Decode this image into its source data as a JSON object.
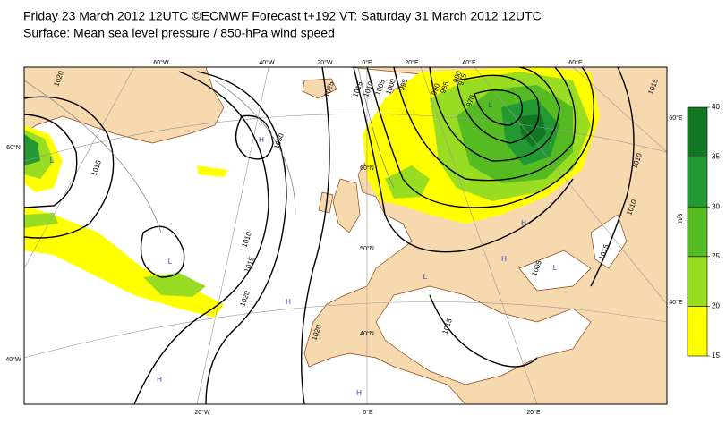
{
  "header": {
    "line1": "Friday 23 March 2012 12UTC ©ECMWF Forecast t+192 VT: Saturday 31 March 2012 12UTC",
    "line2": "Surface: Mean sea level pressure / 850-hPa wind speed"
  },
  "graticule_labels": [
    "60°W",
    "40°W",
    "20°W",
    "0°E",
    "20°E",
    "40°E",
    "60°E",
    "20°W",
    "0°E",
    "20°E",
    "60°N",
    "40°W",
    "60°E",
    "40°E",
    "60°N",
    "50°N",
    "40°N"
  ],
  "isobar_labels": [
    "1020",
    "1015",
    "1010",
    "1015",
    "1020",
    "1020",
    "1030",
    "1025",
    "1015",
    "1010",
    "1005",
    "1000",
    "995",
    "990",
    "985",
    "980",
    "975",
    "970",
    "1015",
    "1010",
    "1010",
    "1015",
    "1015",
    "1005"
  ],
  "pressure_centres": [
    "H",
    "L",
    "H",
    "H",
    "H",
    "L",
    "H",
    "L",
    "L",
    "H",
    "L"
  ],
  "colorbar": {
    "unit": "m/s",
    "ticks": [
      15,
      20,
      25,
      30,
      35,
      40
    ],
    "colors": [
      "#ffff00",
      "#99dd22",
      "#55bb22",
      "#229933",
      "#117722"
    ]
  }
}
